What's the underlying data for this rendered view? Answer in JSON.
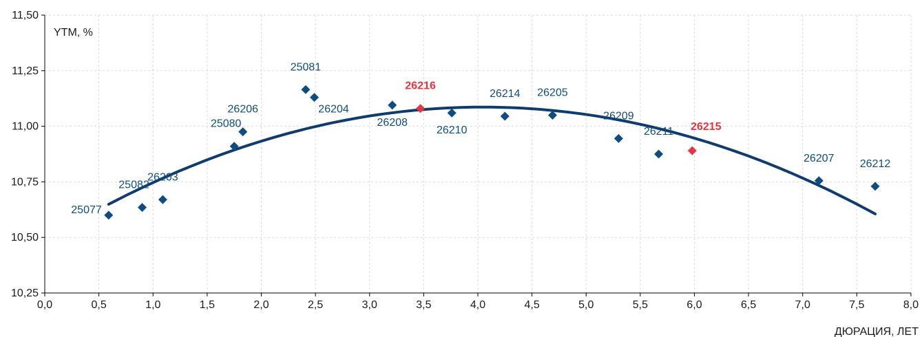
{
  "chart_data": {
    "type": "scatter",
    "ylabel": "YTM, %",
    "xlabel": "ДЮРАЦИЯ, ЛЕТ",
    "xlim": [
      0,
      8
    ],
    "ylim": [
      10.25,
      11.5
    ],
    "x_ticks": [
      "0,0",
      "0,5",
      "1,0",
      "1,5",
      "2,0",
      "2,5",
      "3,0",
      "3,5",
      "4,0",
      "4,5",
      "5,0",
      "5,5",
      "6,0",
      "6,5",
      "7,0",
      "7,5",
      "8,0"
    ],
    "y_ticks": [
      "10,25",
      "10,50",
      "10,75",
      "11,00",
      "11,25",
      "11,50"
    ],
    "grid": true,
    "colors": {
      "main": "#0f4c81",
      "highlight": "#e8343f",
      "curve": "#0f3c6e"
    },
    "points": [
      {
        "name": "25077",
        "x": 0.59,
        "y": 10.6,
        "highlight": false,
        "label_pos": "left"
      },
      {
        "name": "25082",
        "x": 0.9,
        "y": 10.635,
        "highlight": false,
        "label_pos": "above-left"
      },
      {
        "name": "26203",
        "x": 1.09,
        "y": 10.67,
        "highlight": false,
        "label_pos": "above"
      },
      {
        "name": "25080",
        "x": 1.75,
        "y": 10.91,
        "highlight": false,
        "label_pos": "above-left"
      },
      {
        "name": "26206",
        "x": 1.83,
        "y": 10.975,
        "highlight": false,
        "label_pos": "above"
      },
      {
        "name": "25081",
        "x": 2.41,
        "y": 11.165,
        "highlight": false,
        "label_pos": "above"
      },
      {
        "name": "26204",
        "x": 2.49,
        "y": 11.13,
        "highlight": false,
        "label_pos": "below-right"
      },
      {
        "name": "26208",
        "x": 3.21,
        "y": 11.095,
        "highlight": false,
        "label_pos": "below"
      },
      {
        "name": "26216",
        "x": 3.47,
        "y": 11.08,
        "highlight": true,
        "label_pos": "above"
      },
      {
        "name": "26210",
        "x": 3.76,
        "y": 11.06,
        "highlight": false,
        "label_pos": "below"
      },
      {
        "name": "26214",
        "x": 4.25,
        "y": 11.045,
        "highlight": false,
        "label_pos": "above"
      },
      {
        "name": "26205",
        "x": 4.69,
        "y": 11.05,
        "highlight": false,
        "label_pos": "above"
      },
      {
        "name": "26209",
        "x": 5.3,
        "y": 10.945,
        "highlight": false,
        "label_pos": "above"
      },
      {
        "name": "26211",
        "x": 5.67,
        "y": 10.875,
        "highlight": false,
        "label_pos": "above"
      },
      {
        "name": "26215",
        "x": 5.98,
        "y": 10.89,
        "highlight": true,
        "label_pos": "above-right"
      },
      {
        "name": "26207",
        "x": 7.15,
        "y": 10.755,
        "highlight": false,
        "label_pos": "above"
      },
      {
        "name": "26212",
        "x": 7.67,
        "y": 10.73,
        "highlight": false,
        "label_pos": "above"
      }
    ],
    "trend": {
      "type": "quadratic",
      "x_range": [
        0.59,
        7.67
      ],
      "coefficients": {
        "a": -0.0366,
        "b": 0.2962,
        "c": 10.487
      }
    }
  }
}
